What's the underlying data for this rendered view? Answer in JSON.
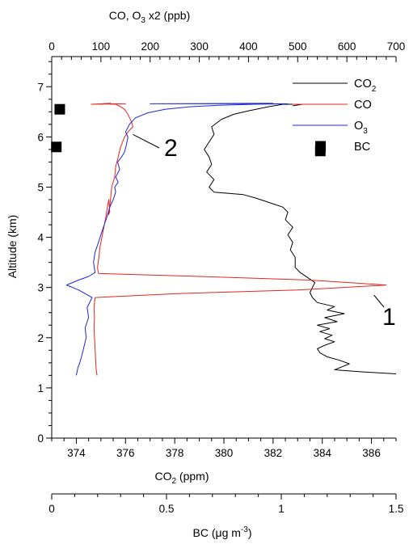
{
  "chart_data": {
    "type": "line",
    "axes": {
      "left": {
        "label": "Altitude (km)",
        "range": [
          0,
          7.6
        ],
        "ticks": [
          0,
          1,
          2,
          3,
          4,
          5,
          6,
          7
        ]
      },
      "bottom": {
        "label": "CO",
        "label_sub": "2",
        "label_tail": " (ppm)",
        "range": [
          373,
          387
        ],
        "ticks": [
          374,
          376,
          378,
          380,
          382,
          384,
          386
        ]
      },
      "top": {
        "label_a": "CO, O",
        "label_sub": "3",
        "label_b": " x2 (ppb)",
        "range": [
          0,
          700
        ],
        "ticks": [
          0,
          100,
          200,
          300,
          400,
          500,
          600,
          700
        ]
      },
      "bc": {
        "label_a": "BC (μg m",
        "label_sup": "-3",
        "label_b": ")",
        "range": [
          0,
          1.5
        ],
        "ticks": [
          "0",
          "0.5",
          "1",
          "1.5"
        ]
      }
    },
    "legend": {
      "placement": "top-right",
      "items": [
        {
          "base": "CO",
          "sub": "2",
          "marker": "line",
          "color": "#000000"
        },
        {
          "base": "CO",
          "sub": "",
          "marker": "line",
          "color": "#e8231e"
        },
        {
          "base": "O",
          "sub": "3",
          "marker": "line",
          "color": "#1c27d9"
        },
        {
          "base": "BC",
          "sub": "",
          "marker": "square",
          "color": "#000000"
        }
      ]
    },
    "annotations": [
      {
        "text": "2",
        "points_to": {
          "x_ppb": 165,
          "y_km": 6.05
        }
      },
      {
        "text": "1",
        "points_to": {
          "x_ppb": 655,
          "y_km": 2.85
        }
      }
    ],
    "series": [
      {
        "name": "CO2",
        "color": "#000000",
        "axis": "bottom",
        "points": [
          [
            387.0,
            1.28
          ],
          [
            385.6,
            1.32
          ],
          [
            384.5,
            1.36
          ],
          [
            384.8,
            1.42
          ],
          [
            385.1,
            1.48
          ],
          [
            384.7,
            1.55
          ],
          [
            384.2,
            1.62
          ],
          [
            383.9,
            1.7
          ],
          [
            383.8,
            1.78
          ],
          [
            384.1,
            1.85
          ],
          [
            384.5,
            1.92
          ],
          [
            384.1,
            1.98
          ],
          [
            384.4,
            2.05
          ],
          [
            383.9,
            2.12
          ],
          [
            384.3,
            2.18
          ],
          [
            383.8,
            2.25
          ],
          [
            384.6,
            2.32
          ],
          [
            384.1,
            2.4
          ],
          [
            384.9,
            2.48
          ],
          [
            384.2,
            2.55
          ],
          [
            384.5,
            2.62
          ],
          [
            383.8,
            2.7
          ],
          [
            383.6,
            2.8
          ],
          [
            383.5,
            2.9
          ],
          [
            383.6,
            3.0
          ],
          [
            383.7,
            3.1
          ],
          [
            383.4,
            3.2
          ],
          [
            383.1,
            3.3
          ],
          [
            382.9,
            3.4
          ],
          [
            382.9,
            3.6
          ],
          [
            382.7,
            3.75
          ],
          [
            382.8,
            3.9
          ],
          [
            382.6,
            4.05
          ],
          [
            382.8,
            4.2
          ],
          [
            382.5,
            4.35
          ],
          [
            382.6,
            4.5
          ],
          [
            382.4,
            4.6
          ],
          [
            381.8,
            4.7
          ],
          [
            381.3,
            4.78
          ],
          [
            380.8,
            4.85
          ],
          [
            379.6,
            4.9
          ],
          [
            379.4,
            5.0
          ],
          [
            379.6,
            5.15
          ],
          [
            379.3,
            5.3
          ],
          [
            379.5,
            5.45
          ],
          [
            379.4,
            5.6
          ],
          [
            379.2,
            5.75
          ],
          [
            379.4,
            5.9
          ],
          [
            379.6,
            6.05
          ],
          [
            379.5,
            6.2
          ],
          [
            379.9,
            6.35
          ],
          [
            380.4,
            6.45
          ],
          [
            381.0,
            6.52
          ],
          [
            381.8,
            6.6
          ],
          [
            382.4,
            6.65
          ],
          [
            383.2,
            6.65
          ],
          [
            382.8,
            6.62
          ]
        ]
      },
      {
        "name": "CO",
        "color": "#e8231e",
        "axis": "top",
        "points": [
          [
            92,
            1.25
          ],
          [
            90,
            1.4
          ],
          [
            89,
            1.6
          ],
          [
            88,
            1.8
          ],
          [
            87,
            2.0
          ],
          [
            86,
            2.2
          ],
          [
            87,
            2.4
          ],
          [
            86,
            2.6
          ],
          [
            88,
            2.8
          ],
          [
            260,
            2.88
          ],
          [
            500,
            2.95
          ],
          [
            680,
            3.05
          ],
          [
            520,
            3.15
          ],
          [
            300,
            3.22
          ],
          [
            95,
            3.28
          ],
          [
            93,
            3.4
          ],
          [
            96,
            3.6
          ],
          [
            98,
            3.8
          ],
          [
            102,
            4.0
          ],
          [
            106,
            4.2
          ],
          [
            110,
            4.4
          ],
          [
            113,
            4.6
          ],
          [
            116,
            4.75
          ],
          [
            117,
            4.62
          ],
          [
            118,
            4.5
          ],
          [
            115,
            4.45
          ],
          [
            118,
            4.6
          ],
          [
            120,
            4.8
          ],
          [
            122,
            5.0
          ],
          [
            128,
            5.2
          ],
          [
            130,
            5.4
          ],
          [
            135,
            5.6
          ],
          [
            140,
            5.8
          ],
          [
            148,
            6.0
          ],
          [
            155,
            6.1
          ],
          [
            165,
            6.2
          ],
          [
            162,
            6.3
          ],
          [
            155,
            6.45
          ],
          [
            148,
            6.55
          ],
          [
            140,
            6.6
          ],
          [
            130,
            6.65
          ],
          [
            100,
            6.66
          ],
          [
            150,
            6.66
          ],
          [
            80,
            6.65
          ],
          [
            120,
            6.67
          ]
        ]
      },
      {
        "name": "O3",
        "color": "#1c27d9",
        "axis": "top",
        "points": [
          [
            50,
            1.25
          ],
          [
            53,
            1.4
          ],
          [
            57,
            1.5
          ],
          [
            60,
            1.6
          ],
          [
            65,
            1.8
          ],
          [
            70,
            2.0
          ],
          [
            68,
            2.2
          ],
          [
            75,
            2.4
          ],
          [
            72,
            2.6
          ],
          [
            82,
            2.8
          ],
          [
            55,
            2.95
          ],
          [
            30,
            3.05
          ],
          [
            55,
            3.15
          ],
          [
            75,
            3.22
          ],
          [
            88,
            3.3
          ],
          [
            85,
            3.5
          ],
          [
            88,
            3.7
          ],
          [
            95,
            3.9
          ],
          [
            105,
            4.2
          ],
          [
            112,
            4.4
          ],
          [
            118,
            4.6
          ],
          [
            125,
            4.75
          ],
          [
            130,
            4.9
          ],
          [
            128,
            5.0
          ],
          [
            135,
            5.1
          ],
          [
            130,
            5.2
          ],
          [
            138,
            5.35
          ],
          [
            134,
            5.5
          ],
          [
            142,
            5.6
          ],
          [
            148,
            5.7
          ],
          [
            152,
            5.85
          ],
          [
            155,
            6.0
          ],
          [
            150,
            6.1
          ],
          [
            158,
            6.25
          ],
          [
            170,
            6.38
          ],
          [
            195,
            6.48
          ],
          [
            230,
            6.55
          ],
          [
            280,
            6.6
          ],
          [
            340,
            6.63
          ],
          [
            410,
            6.65
          ],
          [
            480,
            6.66
          ],
          [
            250,
            6.66
          ],
          [
            200,
            6.66
          ],
          [
            450,
            6.67
          ]
        ]
      },
      {
        "name": "BC",
        "color": "#000000",
        "axis": "bc",
        "marker": "square",
        "points": [
          [
            0.035,
            6.55
          ],
          [
            0.02,
            5.8
          ],
          [
            1.17,
            5.72
          ]
        ]
      }
    ]
  }
}
